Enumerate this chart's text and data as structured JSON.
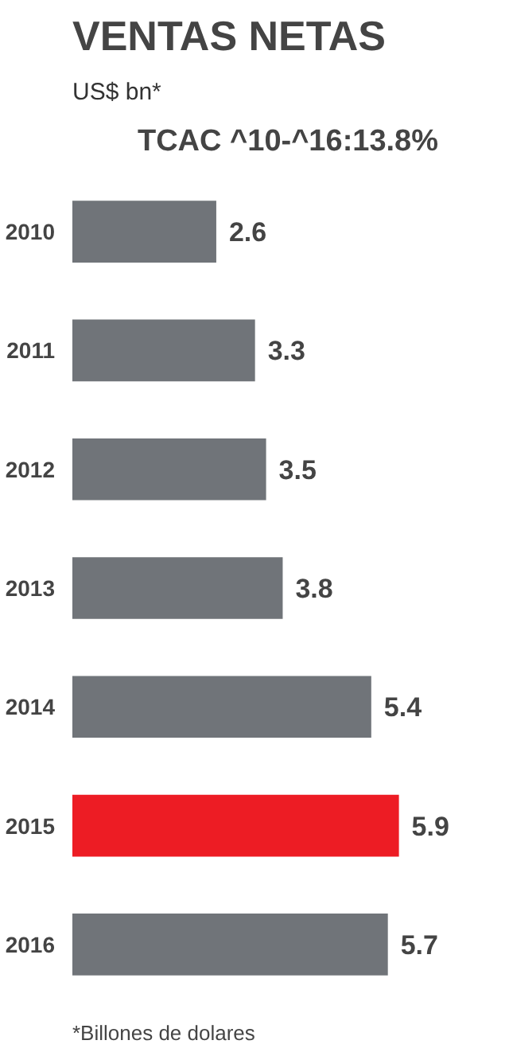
{
  "chart_data": {
    "type": "bar",
    "orientation": "horizontal",
    "title": "VENTAS NETAS",
    "subtitle": "US$ bn*",
    "annotations": [
      "TCAC ^10-^16:13.8%",
      "*Billones de dolares"
    ],
    "categories": [
      "2010",
      "2011",
      "2012",
      "2013",
      "2014",
      "2015",
      "2016"
    ],
    "values": [
      2.6,
      3.3,
      3.5,
      3.8,
      5.4,
      5.9,
      5.7
    ],
    "colors": [
      "#707479",
      "#707479",
      "#707479",
      "#707479",
      "#707479",
      "#ed1c24",
      "#707479"
    ],
    "data_labels": true,
    "tick_labels": "y",
    "grid": false
  }
}
